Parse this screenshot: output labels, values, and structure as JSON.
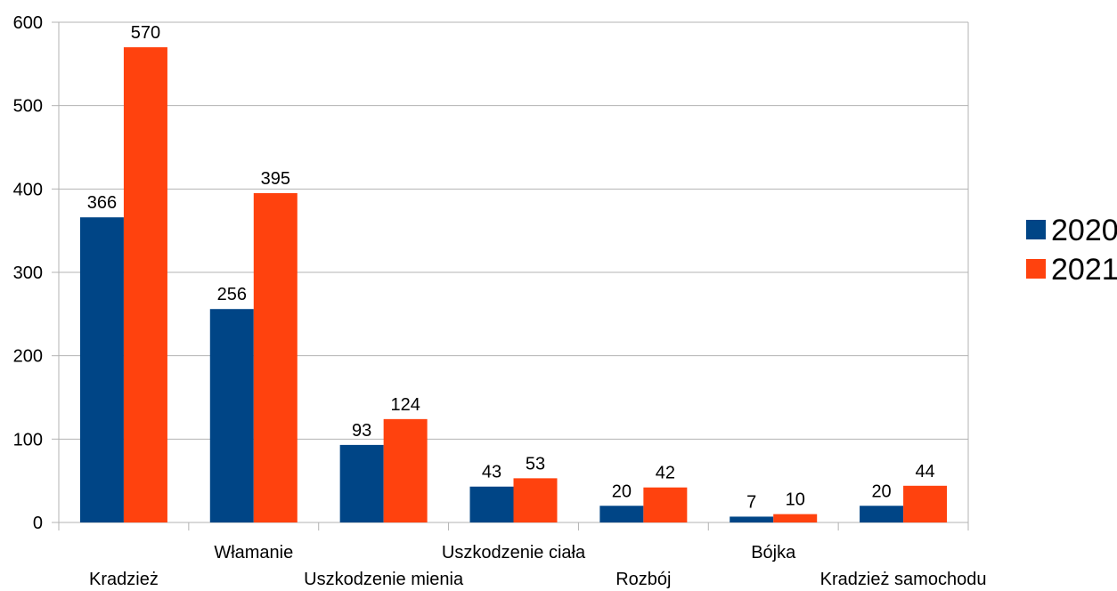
{
  "chart_data": {
    "type": "bar",
    "categories": [
      "Kradzież",
      "Włamanie",
      "Uszkodzenie mienia",
      "Uszkodzenie ciała",
      "Rozbój",
      "Bójka",
      "Kradzież samochodu"
    ],
    "series": [
      {
        "name": "2020",
        "color": "#004586",
        "values": [
          366,
          256,
          93,
          43,
          20,
          7,
          20
        ]
      },
      {
        "name": "2021",
        "color": "#ff420e",
        "values": [
          570,
          395,
          124,
          53,
          42,
          10,
          44
        ]
      }
    ],
    "yticks": [
      "0",
      "100",
      "200",
      "300",
      "400",
      "500",
      "600"
    ],
    "ylim": [
      0,
      600
    ],
    "grid": true,
    "legend_position": "right",
    "data_labels": true
  }
}
